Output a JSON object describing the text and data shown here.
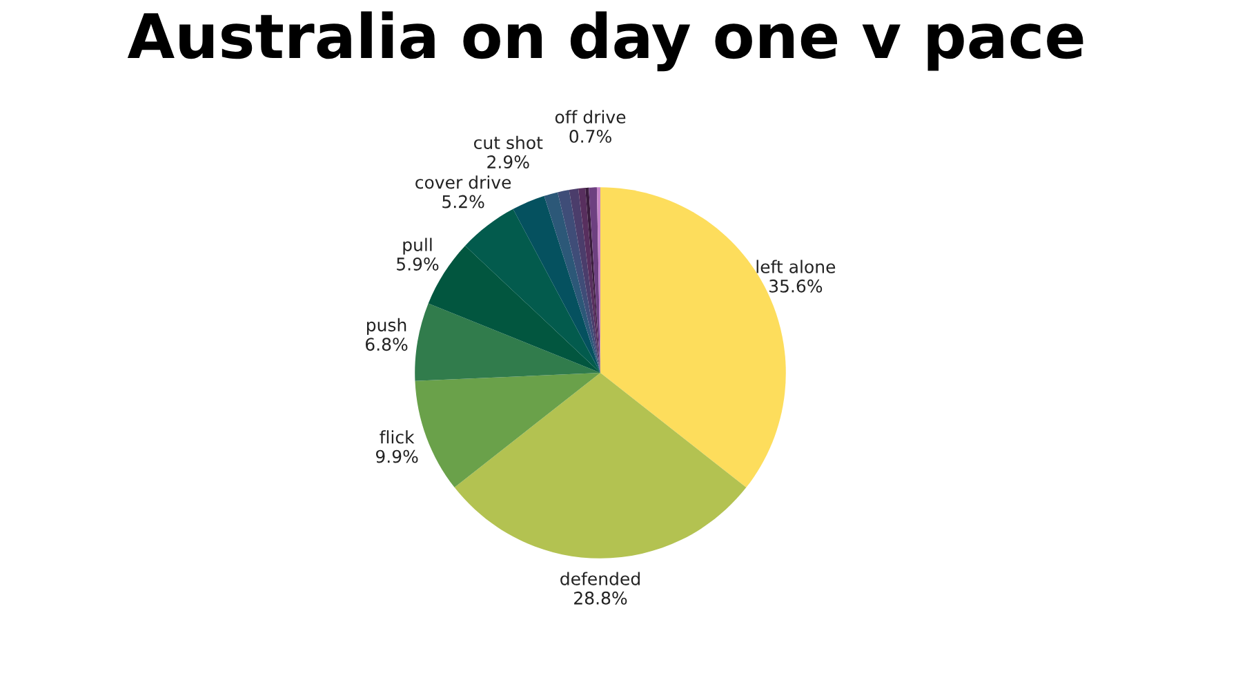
{
  "chart_data": {
    "type": "pie",
    "title": "Australia on day one v pace",
    "categories": [
      "left alone",
      "defended",
      "flick",
      "push",
      "pull",
      "cover drive",
      "cut shot",
      null,
      null,
      null,
      null,
      null,
      "off drive",
      null
    ],
    "values": [
      35.6,
      28.8,
      9.9,
      6.8,
      5.9,
      5.2,
      2.9,
      1.2,
      1.0,
      0.8,
      0.6,
      0.3,
      0.7,
      0.3
    ],
    "value_labels": [
      "35.6%",
      "28.8%",
      "9.9%",
      "6.8%",
      "5.9%",
      "5.2%",
      "2.9%",
      null,
      null,
      null,
      null,
      null,
      "0.7%",
      null
    ],
    "colors": [
      "#fddd5c",
      "#b3c251",
      "#6aa14a",
      "#317c4c",
      "#02563f",
      "#035b4d",
      "#05515f",
      "#2c5878",
      "#3f4d78",
      "#4b3d6b",
      "#582f5e",
      "#3a1d3d",
      "#6d4080",
      "#c785c8"
    ],
    "legend": false
  }
}
